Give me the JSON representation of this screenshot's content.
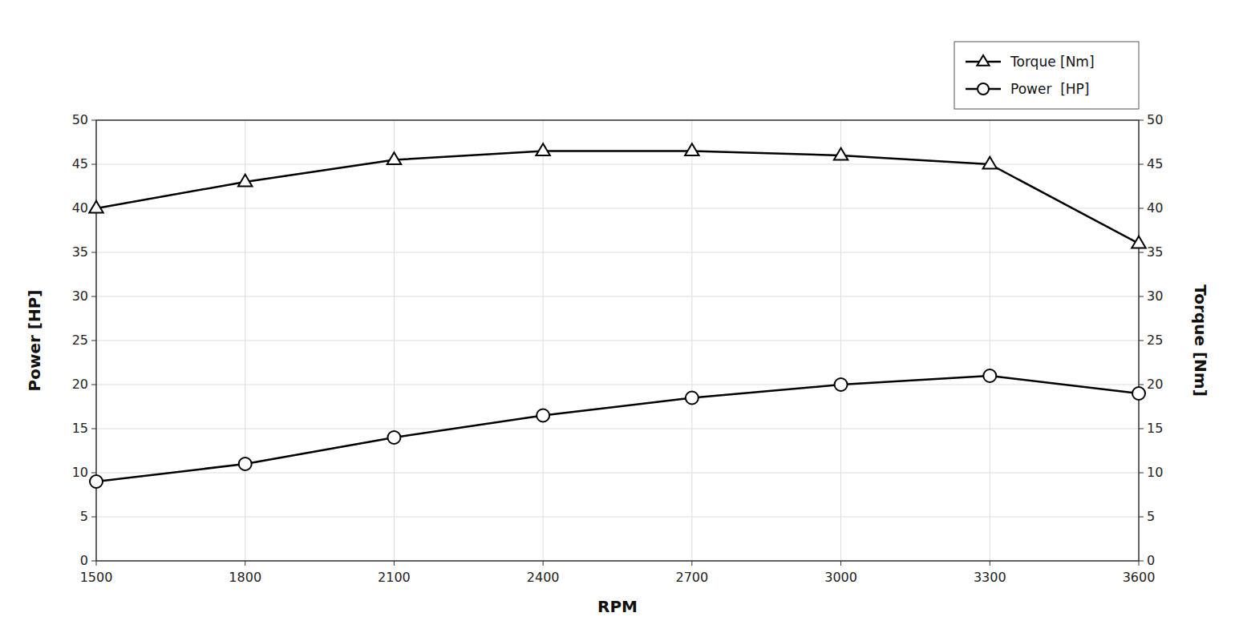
{
  "chart_data": {
    "type": "line",
    "x_label": "RPM",
    "y_label": "Power [HP]",
    "y2_label": "Torque [Nm]",
    "x": [
      1500,
      1800,
      2100,
      2400,
      2700,
      3000,
      3300,
      3600
    ],
    "series": [
      {
        "name": "Torque [Nm]",
        "color": "#000000",
        "marker": "triangle",
        "line_style": "solid",
        "values": [
          40,
          43,
          45.5,
          46.5,
          46.5,
          46,
          45,
          36
        ]
      },
      {
        "name": "Power  [HP]",
        "color": "#000000",
        "marker": "circle",
        "line_style": "solid",
        "values": [
          9,
          11,
          14,
          16.5,
          18.5,
          20,
          21,
          19
        ]
      }
    ],
    "xlim": [
      1500,
      3600
    ],
    "xticks": [
      1500,
      1800,
      2100,
      2400,
      2700,
      3000,
      3300,
      3600
    ],
    "ylim": [
      0,
      50
    ],
    "yticks": [
      0,
      5,
      10,
      15,
      20,
      25,
      30,
      35,
      40,
      45,
      50
    ],
    "y2lim": [
      0,
      50
    ],
    "y2ticks": [
      0,
      5,
      10,
      15,
      20,
      25,
      30,
      35,
      40,
      45,
      50
    ],
    "grid": true,
    "legend": "upper right"
  }
}
